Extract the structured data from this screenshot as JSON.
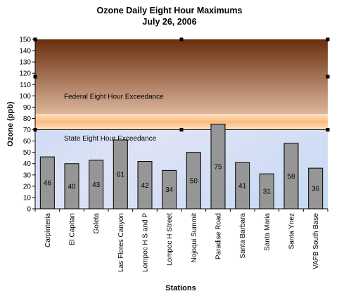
{
  "chart_data": {
    "type": "bar",
    "title": "Ozone Daily Eight Hour Maximums",
    "subtitle": "July 26, 2006",
    "xlabel": "Stations",
    "ylabel": "Ozone (ppb)",
    "ylim": [
      0,
      150
    ],
    "yticks": [
      0,
      10,
      20,
      30,
      40,
      50,
      60,
      70,
      80,
      90,
      100,
      110,
      120,
      130,
      140,
      150
    ],
    "categories": [
      "Carpinteria",
      "El Capitan",
      "Goleta",
      "Las Flores Canyon",
      "Lompoc H S and P",
      "Lompoc H Street",
      "Nojoqui Summit",
      "Paradise Road",
      "Santa Barbara",
      "Santa Maria",
      "Santa Ynez",
      "VAFB South Base"
    ],
    "values": [
      46,
      40,
      43,
      61,
      42,
      34,
      50,
      75,
      41,
      31,
      58,
      36
    ],
    "bands": [
      {
        "label": "Federal Eight Hour Exceedance",
        "from": 84,
        "to": 150
      },
      {
        "label": "State Eight Hour Exceedance",
        "from": 70,
        "to": 84
      }
    ],
    "colors": {
      "bar": "#969696",
      "federal_top": "#6b2e0e",
      "federal_bottom": "#dcb69b",
      "state": "#fdd0a0",
      "plot_bg": "#c9dcf5"
    }
  }
}
